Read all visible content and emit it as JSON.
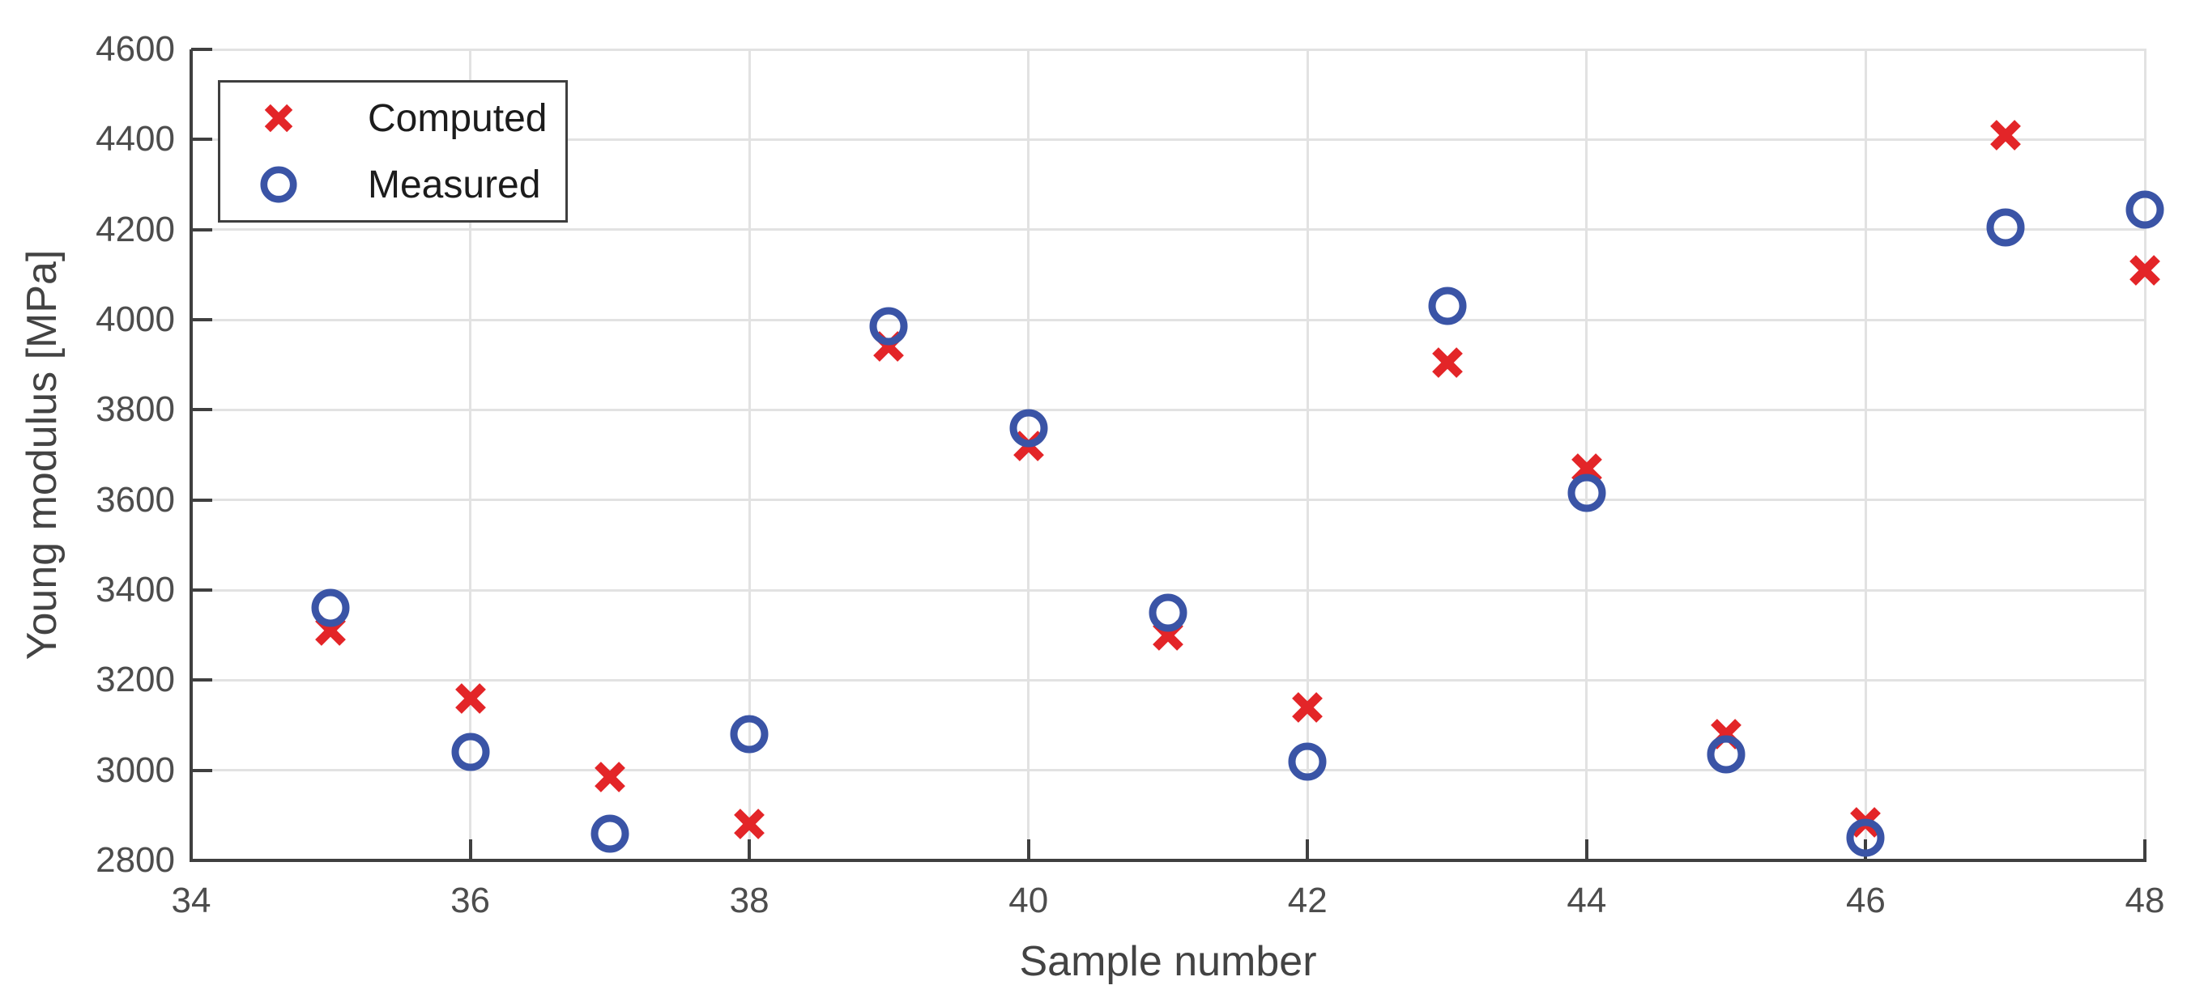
{
  "chart_data": {
    "type": "scatter",
    "title": "",
    "xlabel": "Sample number",
    "ylabel": "Young modulus [MPa]",
    "xlim": [
      34,
      48
    ],
    "ylim": [
      2800,
      4600
    ],
    "x_ticks": [
      34,
      36,
      38,
      40,
      42,
      44,
      46,
      48
    ],
    "y_ticks": [
      2800,
      3000,
      3200,
      3400,
      3600,
      3800,
      4000,
      4200,
      4400,
      4600
    ],
    "grid": true,
    "legend_position": "top-left",
    "x": [
      35,
      36,
      37,
      38,
      39,
      40,
      41,
      42,
      43,
      44,
      45,
      46,
      47,
      48
    ],
    "series": [
      {
        "name": "Computed",
        "marker": "x",
        "color": "#e32528",
        "values": [
          3310,
          3160,
          2985,
          2880,
          3940,
          3720,
          3300,
          3140,
          3905,
          3670,
          3080,
          2885,
          4410,
          4110
        ]
      },
      {
        "name": "Measured",
        "marker": "o",
        "color": "#3a54a6",
        "values": [
          3360,
          3040,
          2860,
          3080,
          3985,
          3760,
          3350,
          3020,
          4030,
          3615,
          3035,
          2850,
          4205,
          4245
        ]
      }
    ],
    "style": {
      "axis_color": "#3f3f3f",
      "grid_color": "#e2e2e2",
      "tick_label_color": "#4d4d4d",
      "axis_label_color": "#434343",
      "background": "#ffffff"
    }
  }
}
